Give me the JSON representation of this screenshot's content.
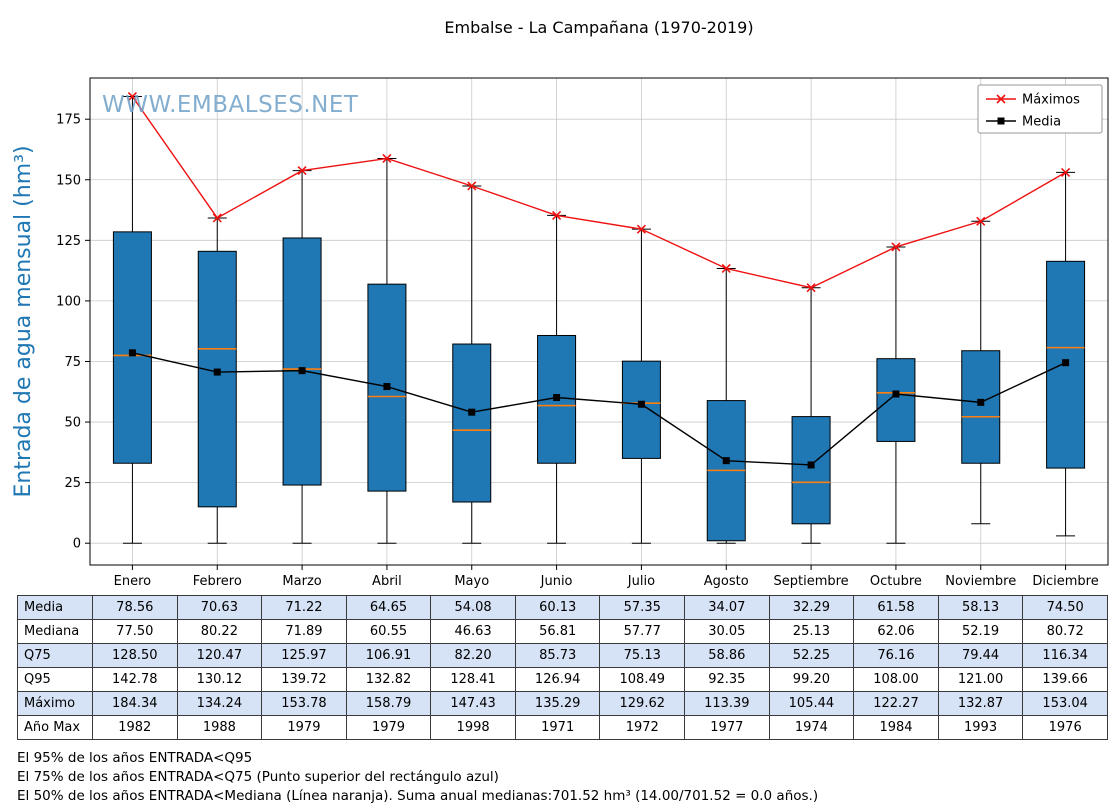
{
  "watermark": "WWW.EMBALSES.NET",
  "chart_data": {
    "type": "boxplot",
    "title": "Embalse - La Campañana (1970-2019)",
    "ylabel": "Entrada de agua mensual (hm³)",
    "ylim": [
      -9,
      192
    ],
    "yticks": [
      0,
      25,
      50,
      75,
      100,
      125,
      150,
      175
    ],
    "grid": true,
    "legend_position": "top-right",
    "categories": [
      "Enero",
      "Febrero",
      "Marzo",
      "Abril",
      "Mayo",
      "Junio",
      "Julio",
      "Agosto",
      "Septiembre",
      "Octubre",
      "Noviembre",
      "Diciembre"
    ],
    "box": {
      "q1": [
        33,
        15,
        24,
        21.5,
        17,
        33,
        35,
        1,
        8,
        42,
        33,
        31
      ],
      "median": [
        77.5,
        80.22,
        71.89,
        60.55,
        46.63,
        56.81,
        57.77,
        30.05,
        25.13,
        62.06,
        52.19,
        80.72
      ],
      "q3": [
        128.5,
        120.47,
        125.97,
        106.91,
        82.2,
        85.73,
        75.13,
        58.86,
        52.25,
        76.16,
        79.44,
        116.34
      ],
      "whisker_low": [
        0,
        0,
        0,
        0,
        0,
        0,
        0,
        0,
        0,
        0,
        8,
        3
      ],
      "whisker_high": [
        184.34,
        134.24,
        153.78,
        158.79,
        147.43,
        135.29,
        129.62,
        113.39,
        105.44,
        122.27,
        132.87,
        153.04
      ]
    },
    "series": [
      {
        "name": "Máximos",
        "type": "line",
        "marker": "x",
        "color": "#ee1111",
        "values": [
          184.34,
          134.24,
          153.78,
          158.79,
          147.43,
          135.29,
          129.62,
          113.39,
          105.44,
          122.27,
          132.87,
          153.04
        ]
      },
      {
        "name": "Media",
        "type": "line",
        "marker": "square",
        "color": "#000000",
        "values": [
          78.56,
          70.63,
          71.22,
          64.65,
          54.08,
          60.13,
          57.35,
          34.07,
          32.29,
          61.58,
          58.13,
          74.5
        ]
      }
    ],
    "colors": {
      "box_fill": "#1f77b4",
      "box_edge": "#000000",
      "median": "#ff7f0e",
      "grid": "#c9c9c9",
      "ylabel": "#1f77b4",
      "watermark": "#6fa0c7"
    }
  },
  "table": {
    "rows": [
      {
        "label": "Media",
        "values": [
          "78.56",
          "70.63",
          "71.22",
          "64.65",
          "54.08",
          "60.13",
          "57.35",
          "34.07",
          "32.29",
          "61.58",
          "58.13",
          "74.50"
        ]
      },
      {
        "label": "Mediana",
        "values": [
          "77.50",
          "80.22",
          "71.89",
          "60.55",
          "46.63",
          "56.81",
          "57.77",
          "30.05",
          "25.13",
          "62.06",
          "52.19",
          "80.72"
        ]
      },
      {
        "label": "Q75",
        "values": [
          "128.50",
          "120.47",
          "125.97",
          "106.91",
          "82.20",
          "85.73",
          "75.13",
          "58.86",
          "52.25",
          "76.16",
          "79.44",
          "116.34"
        ]
      },
      {
        "label": "Q95",
        "values": [
          "142.78",
          "130.12",
          "139.72",
          "132.82",
          "128.41",
          "126.94",
          "108.49",
          "92.35",
          "99.20",
          "108.00",
          "121.00",
          "139.66"
        ]
      },
      {
        "label": "Máximo",
        "values": [
          "184.34",
          "134.24",
          "153.78",
          "158.79",
          "147.43",
          "135.29",
          "129.62",
          "113.39",
          "105.44",
          "122.27",
          "132.87",
          "153.04"
        ]
      },
      {
        "label": "Año Max",
        "values": [
          "1982",
          "1988",
          "1979",
          "1979",
          "1998",
          "1971",
          "1972",
          "1977",
          "1974",
          "1984",
          "1993",
          "1976"
        ]
      }
    ],
    "stripe_color": "#d6e2f5"
  },
  "footnotes": [
    "El 95% de los años ENTRADA<Q95",
    "El 75% de los años ENTRADA<Q75 (Punto superior del rectángulo azul)",
    "El 50% de los años ENTRADA<Mediana (Línea naranja). Suma anual medianas:701.52 hm³ (14.00/701.52 = 0.0 años.)"
  ]
}
